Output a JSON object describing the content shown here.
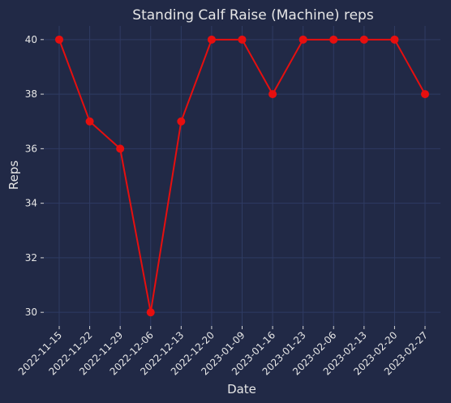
{
  "chart_data": {
    "type": "line",
    "title": "Standing Calf Raise (Machine) reps",
    "xlabel": "Date",
    "ylabel": "Reps",
    "categories": [
      "2022-11-15",
      "2022-11-22",
      "2022-11-29",
      "2022-12-06",
      "2022-12-13",
      "2022-12-20",
      "2023-01-09",
      "2023-01-16",
      "2023-01-23",
      "2023-02-06",
      "2023-02-13",
      "2023-02-20",
      "2023-02-27"
    ],
    "series": [
      {
        "values": [
          40,
          37,
          36,
          30,
          37,
          40,
          40,
          38,
          40,
          40,
          40,
          40,
          38
        ],
        "color": "#e60f0f"
      }
    ],
    "yticks": [
      30,
      32,
      34,
      36,
      38,
      40
    ],
    "ylim": [
      29.5,
      40.5
    ],
    "grid": true,
    "background": "#212946",
    "grid_color": "#2f3b63"
  }
}
